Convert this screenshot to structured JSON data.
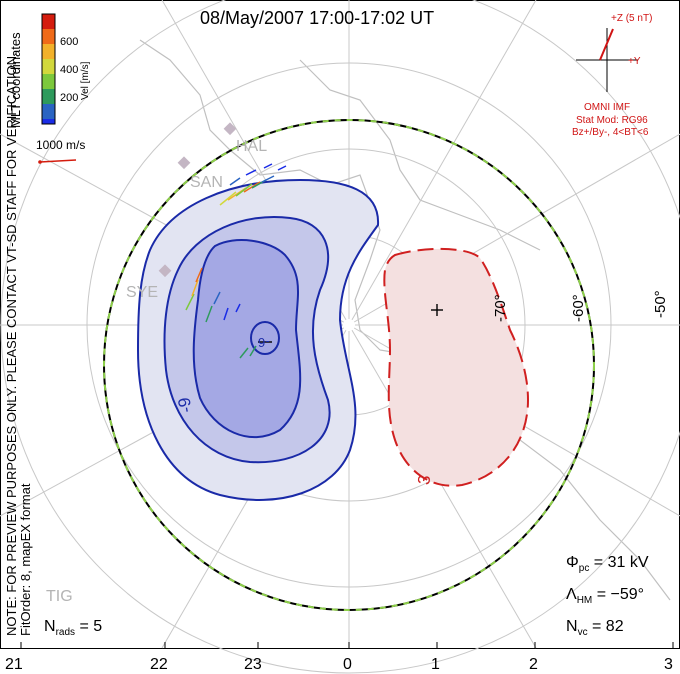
{
  "title": "08/May/2007 17:00-17:02 UT",
  "watermark": "NOTE: FOR PREVIEW PURPOSES ONLY. PLEASE CONTACT VT-SD STAFF FOR VERIFICATION.",
  "fit_order": "FitOrder: 8, mapEX format",
  "coordinates": "MLT coordinates",
  "color_scale": {
    "label": "Vel [m/s]",
    "ticks": [
      "600",
      "400",
      "200"
    ],
    "colors": [
      "#d41c0e",
      "#ef6a18",
      "#f2b12a",
      "#d2d83c",
      "#7cc83c",
      "#2e9a5c",
      "#2a64c2",
      "#1a2ce6"
    ]
  },
  "velocity_scale": {
    "label": "1000 m/s"
  },
  "imf": {
    "z_label": "+Z (5 nT)",
    "y_label": "+Y",
    "source": "OMNI IMF",
    "model": "Stat Mod: RG96",
    "condition": "Bz+/By-, 4<BT<6"
  },
  "stats": {
    "phi_pc": {
      "label": "Φ",
      "sub": "pc",
      "value": "= 31 kV"
    },
    "lambda_hm": {
      "label": "Λ",
      "sub": "HM",
      "value": "= −59°"
    },
    "n_vc": {
      "label": "N",
      "sub": "vc",
      "value": "= 82"
    },
    "n_rads": {
      "label": "N",
      "sub": "rads",
      "value": "= 5"
    }
  },
  "mlt_labels": [
    "21",
    "22",
    "23",
    "0",
    "1",
    "2",
    "3"
  ],
  "lat_labels": [
    "-70°",
    "-60°",
    "-50°"
  ],
  "stations": [
    "HAL",
    "SAN",
    "SYE",
    "TIG"
  ],
  "contour_labels": [
    "-9",
    "-6",
    "3"
  ],
  "colors": {
    "negative": "#1a2aa8",
    "positive": "#d02020",
    "hmb_dash": "#8ed04a",
    "grid": "#c8c8c8"
  }
}
